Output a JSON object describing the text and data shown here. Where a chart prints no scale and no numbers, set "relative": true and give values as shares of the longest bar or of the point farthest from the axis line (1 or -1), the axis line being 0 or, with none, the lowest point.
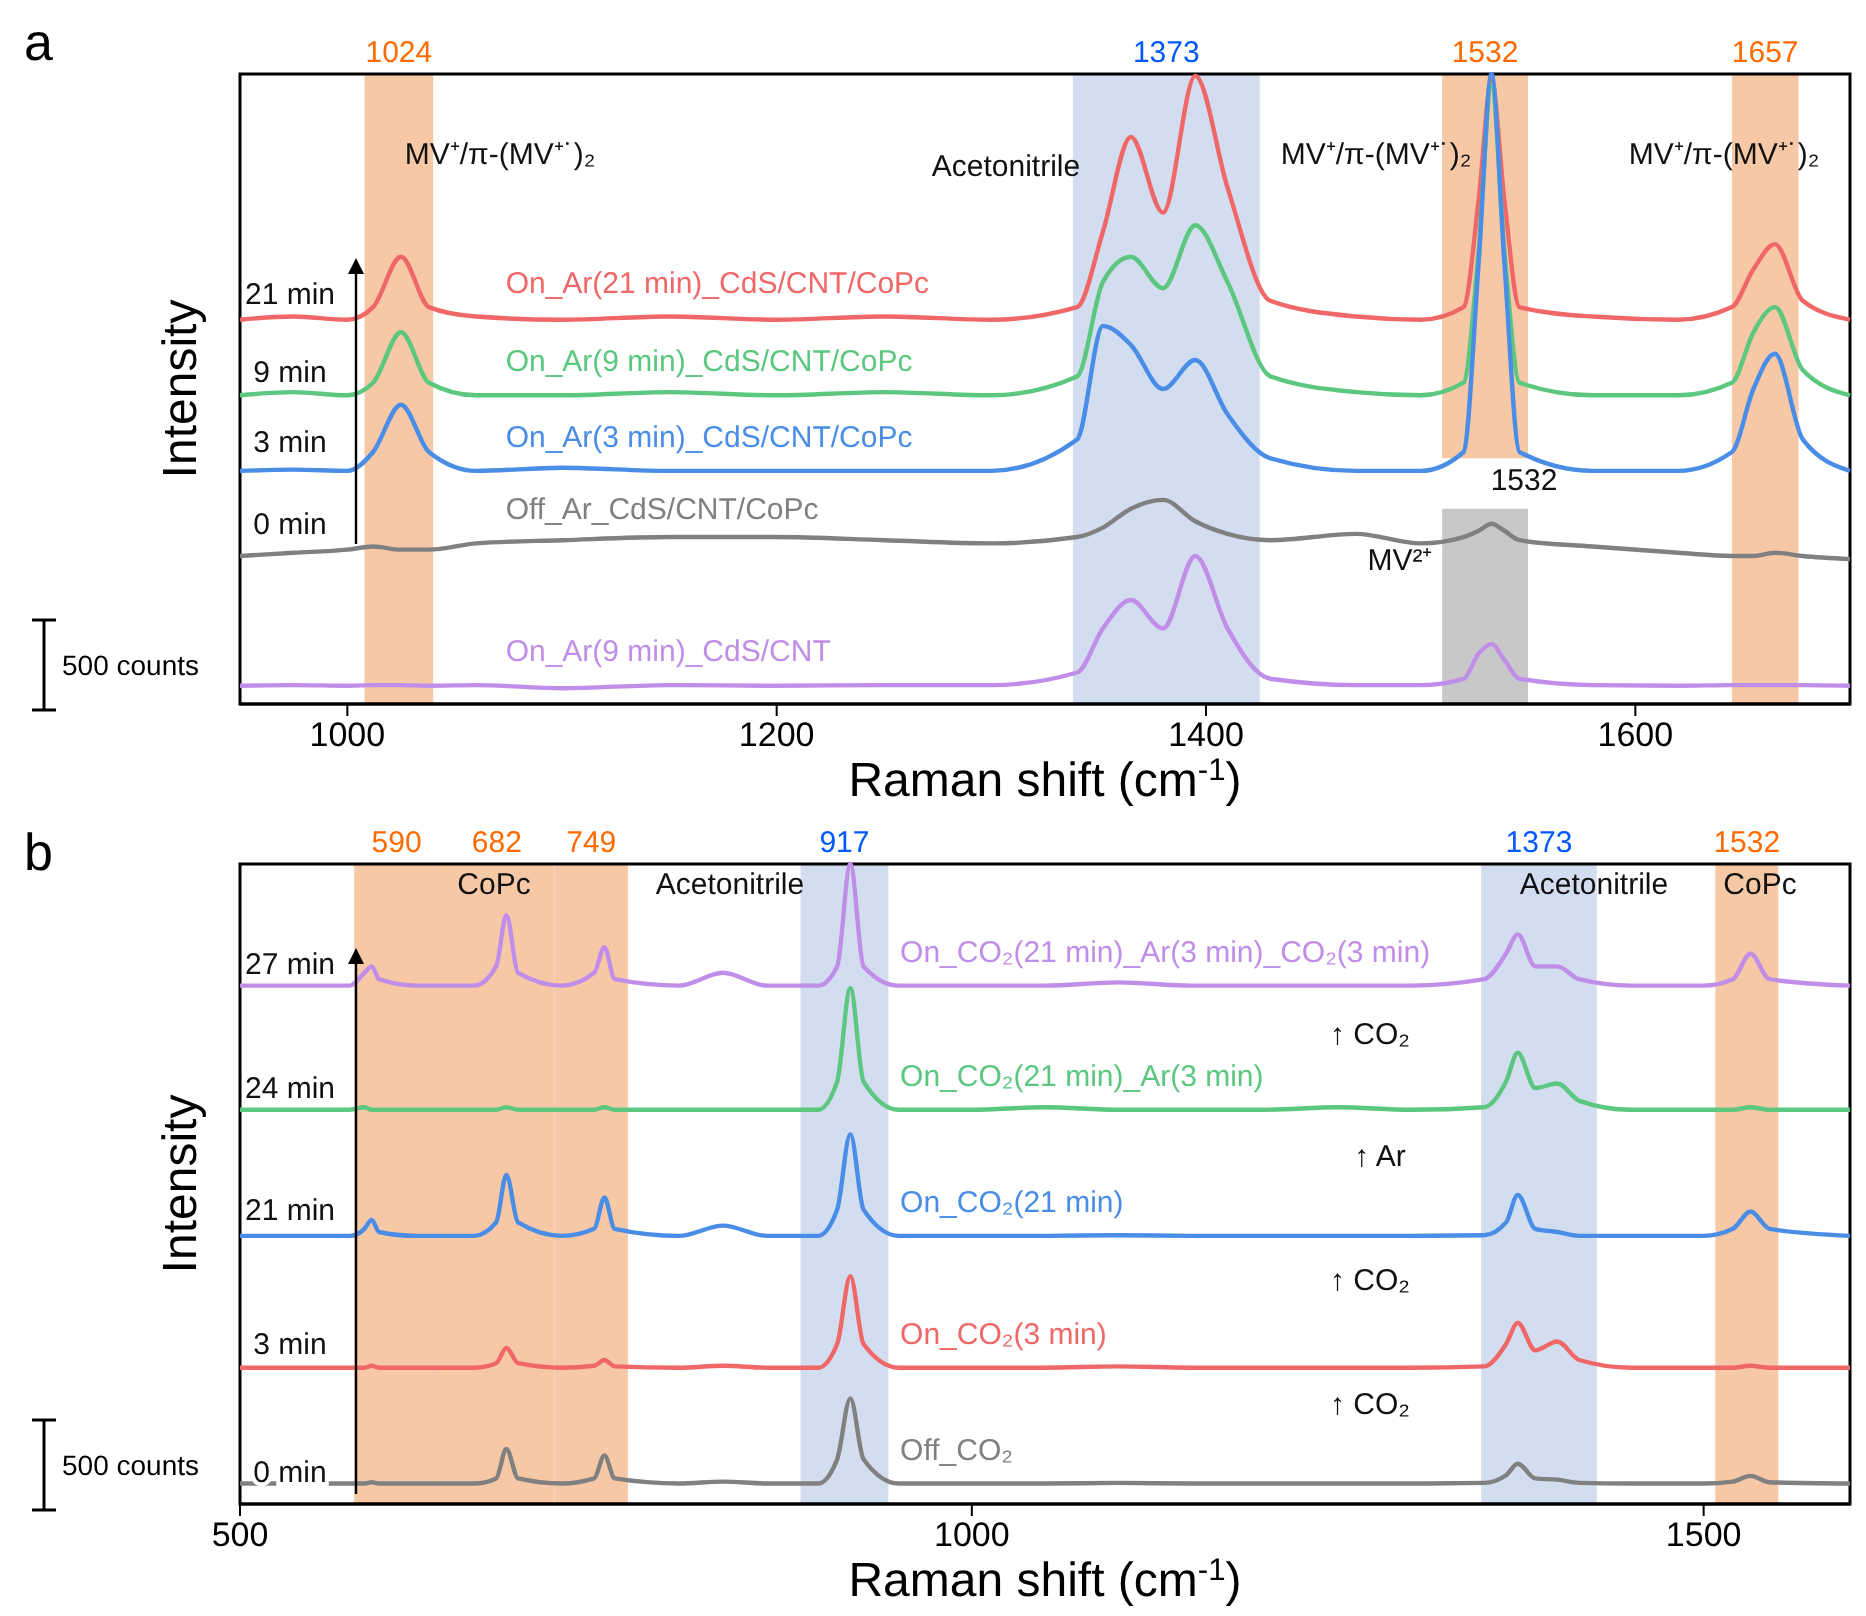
{
  "chart_data": [
    {
      "type": "line",
      "title": "a",
      "xlabel": "Raman shift (cm$^{-1}$)",
      "ylabel": "Intensity",
      "relative": true,
      "xlim": [
        950,
        1700
      ],
      "xticks": [
        1000,
        1200,
        1400,
        1600
      ],
      "tick_labels": "x",
      "line_style": "solid",
      "x": [
        950,
        975,
        1000,
        1012,
        1025,
        1038,
        1060,
        1100,
        1150,
        1200,
        1250,
        1300,
        1340,
        1352,
        1365,
        1380,
        1395,
        1410,
        1430,
        1470,
        1500,
        1520,
        1527,
        1533,
        1539,
        1546,
        1580,
        1620,
        1645,
        1655,
        1665,
        1678,
        1700
      ],
      "series": [
        {
          "name": "On_Ar(21 min)_CdS/CNT/CoPc",
          "color": "#f06767",
          "values": [
            0.61,
            0.615,
            0.61,
            0.63,
            0.71,
            0.63,
            0.615,
            0.61,
            0.615,
            0.61,
            0.615,
            0.61,
            0.63,
            0.75,
            0.9,
            0.78,
            0.997,
            0.82,
            0.64,
            0.615,
            0.61,
            0.63,
            0.8,
            0.99,
            0.8,
            0.63,
            0.615,
            0.61,
            0.63,
            0.69,
            0.73,
            0.64,
            0.61
          ]
        },
        {
          "name": "On_Ar(9 min)_CdS/CNT/CoPc",
          "color": "#5cc77f",
          "values": [
            0.49,
            0.495,
            0.49,
            0.51,
            0.59,
            0.51,
            0.49,
            0.49,
            0.495,
            0.49,
            0.495,
            0.49,
            0.52,
            0.67,
            0.71,
            0.66,
            0.76,
            0.67,
            0.52,
            0.495,
            0.49,
            0.51,
            0.72,
            0.98,
            0.72,
            0.51,
            0.49,
            0.49,
            0.51,
            0.59,
            0.63,
            0.53,
            0.49
          ]
        },
        {
          "name": "On_Ar(3 min)_CdS/CNT/CoPc",
          "color": "#4a8de6",
          "values": [
            0.37,
            0.372,
            0.37,
            0.4,
            0.475,
            0.4,
            0.37,
            0.375,
            0.37,
            0.37,
            0.37,
            0.37,
            0.42,
            0.6,
            0.57,
            0.5,
            0.546,
            0.46,
            0.39,
            0.37,
            0.37,
            0.4,
            0.7,
            1.0,
            0.7,
            0.4,
            0.37,
            0.37,
            0.4,
            0.5,
            0.556,
            0.42,
            0.37
          ]
        },
        {
          "name": "Off_Ar_CdS/CNT/CoPc",
          "color": "#808080",
          "values": [
            0.235,
            0.24,
            0.245,
            0.25,
            0.245,
            0.245,
            0.255,
            0.26,
            0.265,
            0.265,
            0.26,
            0.255,
            0.265,
            0.28,
            0.31,
            0.324,
            0.29,
            0.27,
            0.26,
            0.27,
            0.255,
            0.265,
            0.275,
            0.286,
            0.275,
            0.26,
            0.25,
            0.24,
            0.235,
            0.235,
            0.24,
            0.235,
            0.23
          ]
        },
        {
          "name": "On_Ar(9 min)_CdS/CNT",
          "color": "#c08ee8",
          "values": [
            0.029,
            0.03,
            0.029,
            0.03,
            0.03,
            0.029,
            0.03,
            0.025,
            0.03,
            0.029,
            0.03,
            0.03,
            0.05,
            0.12,
            0.165,
            0.12,
            0.235,
            0.12,
            0.04,
            0.03,
            0.03,
            0.04,
            0.08,
            0.095,
            0.07,
            0.04,
            0.03,
            0.029,
            0.03,
            0.03,
            0.03,
            0.03,
            0.029
          ]
        }
      ],
      "bands": [
        {
          "axis": "x",
          "from": 1008,
          "to": 1040,
          "label": "1024",
          "color": "#f7c8a6"
        },
        {
          "axis": "x",
          "from": 1338,
          "to": 1425,
          "label": "1373",
          "color": "#d3ddf0"
        },
        {
          "axis": "x",
          "from": 1510,
          "to": 1550,
          "label": "1532",
          "color": "#f7c8a6"
        },
        {
          "axis": "x",
          "from": 1510,
          "to": 1550,
          "color": "#c8c8c8"
        },
        {
          "axis": "x",
          "from": 1645,
          "to": 1676,
          "label": "1657",
          "color": "#f7c8a6"
        }
      ],
      "annotations": [
        "MV⁺/π-(MV⁺˙)₂",
        "Acetonitrile",
        "MV⁺/π-(MV⁺˙)₂",
        "MV⁺/π-(MV⁺˙)₂",
        "21 min",
        "9 min",
        "3 min",
        "0 min",
        "1532",
        "MV²⁺",
        "500 counts"
      ]
    },
    {
      "type": "line",
      "title": "b",
      "xlabel": "Raman shift (cm$^{-1}$)",
      "ylabel": "Intensity",
      "relative": true,
      "xlim": [
        500,
        1600
      ],
      "xticks": [
        500,
        1000,
        1500
      ],
      "tick_labels": "x",
      "line_style": "solid",
      "x": [
        500,
        540,
        575,
        585,
        590,
        595,
        620,
        660,
        675,
        682,
        690,
        720,
        742,
        749,
        756,
        800,
        830,
        860,
        895,
        908,
        917,
        926,
        950,
        1000,
        1050,
        1100,
        1150,
        1200,
        1250,
        1300,
        1350,
        1365,
        1373,
        1385,
        1400,
        1415,
        1450,
        1500,
        1520,
        1532,
        1545,
        1600
      ],
      "series": [
        {
          "name": "On_CO₂(21 min)_Ar(3 min)_CO₂(3 min)",
          "color": "#c08ee8",
          "values": [
            0.81,
            0.81,
            0.81,
            0.83,
            0.84,
            0.82,
            0.81,
            0.81,
            0.84,
            0.92,
            0.83,
            0.81,
            0.83,
            0.87,
            0.82,
            0.81,
            0.83,
            0.81,
            0.81,
            0.84,
            1.0,
            0.84,
            0.81,
            0.81,
            0.81,
            0.815,
            0.81,
            0.81,
            0.81,
            0.81,
            0.82,
            0.86,
            0.89,
            0.84,
            0.84,
            0.82,
            0.81,
            0.81,
            0.82,
            0.86,
            0.82,
            0.81
          ]
        },
        {
          "name": "On_CO₂(21 min)_Ar(3 min)",
          "color": "#5cc77f",
          "values": [
            0.616,
            0.616,
            0.616,
            0.62,
            0.616,
            0.616,
            0.616,
            0.616,
            0.616,
            0.62,
            0.616,
            0.616,
            0.616,
            0.62,
            0.616,
            0.616,
            0.616,
            0.616,
            0.616,
            0.66,
            0.806,
            0.66,
            0.616,
            0.616,
            0.62,
            0.616,
            0.616,
            0.616,
            0.62,
            0.616,
            0.62,
            0.66,
            0.705,
            0.65,
            0.657,
            0.63,
            0.616,
            0.616,
            0.616,
            0.62,
            0.616,
            0.616
          ]
        },
        {
          "name": "On_CO₂(21 min)",
          "color": "#4a8de6",
          "values": [
            0.419,
            0.419,
            0.419,
            0.43,
            0.444,
            0.425,
            0.419,
            0.419,
            0.44,
            0.514,
            0.44,
            0.419,
            0.43,
            0.479,
            0.43,
            0.419,
            0.435,
            0.419,
            0.419,
            0.46,
            0.578,
            0.46,
            0.419,
            0.419,
            0.419,
            0.42,
            0.419,
            0.419,
            0.419,
            0.419,
            0.42,
            0.44,
            0.483,
            0.43,
            0.425,
            0.419,
            0.419,
            0.419,
            0.43,
            0.457,
            0.43,
            0.419
          ]
        },
        {
          "name": "On_CO₂(3 min)",
          "color": "#f06767",
          "values": [
            0.213,
            0.213,
            0.213,
            0.213,
            0.216,
            0.213,
            0.213,
            0.213,
            0.22,
            0.244,
            0.22,
            0.213,
            0.216,
            0.225,
            0.215,
            0.213,
            0.216,
            0.213,
            0.213,
            0.25,
            0.356,
            0.25,
            0.213,
            0.213,
            0.213,
            0.215,
            0.213,
            0.213,
            0.213,
            0.213,
            0.215,
            0.25,
            0.283,
            0.24,
            0.254,
            0.225,
            0.213,
            0.213,
            0.213,
            0.216,
            0.213,
            0.213
          ]
        },
        {
          "name": "Off_CO₂",
          "color": "#808080",
          "values": [
            0.032,
            0.032,
            0.032,
            0.032,
            0.034,
            0.032,
            0.032,
            0.032,
            0.04,
            0.086,
            0.04,
            0.032,
            0.04,
            0.076,
            0.04,
            0.032,
            0.035,
            0.032,
            0.032,
            0.07,
            0.165,
            0.07,
            0.032,
            0.032,
            0.032,
            0.033,
            0.032,
            0.032,
            0.032,
            0.032,
            0.033,
            0.045,
            0.063,
            0.04,
            0.038,
            0.033,
            0.032,
            0.032,
            0.035,
            0.044,
            0.034,
            0.032
          ]
        }
      ],
      "bands": [
        {
          "axis": "x",
          "from": 578,
          "to": 636,
          "label": "590",
          "color": "#f7c8a6"
        },
        {
          "axis": "x",
          "from": 636,
          "to": 715,
          "label": "682",
          "color": "#f7c8a6"
        },
        {
          "axis": "x",
          "from": 715,
          "to": 765,
          "label": "749",
          "color": "#f7c8a6"
        },
        {
          "axis": "x",
          "from": 883,
          "to": 943,
          "label": "917",
          "color": "#d3ddf0"
        },
        {
          "axis": "x",
          "from": 1348,
          "to": 1427,
          "label": "1373",
          "color": "#d3ddf0"
        },
        {
          "axis": "x",
          "from": 1508,
          "to": 1551,
          "label": "1532",
          "color": "#f7c8a6"
        }
      ],
      "annotations": [
        "CoPc",
        "Acetonitrile",
        "Acetonitrile",
        "CoPc",
        "27 min",
        "24 min",
        "21 min",
        "3 min",
        "0 min",
        "↑ CO₂",
        "↑ Ar",
        "↑ CO₂",
        "↑ CO₂",
        "500 counts"
      ]
    }
  ]
}
